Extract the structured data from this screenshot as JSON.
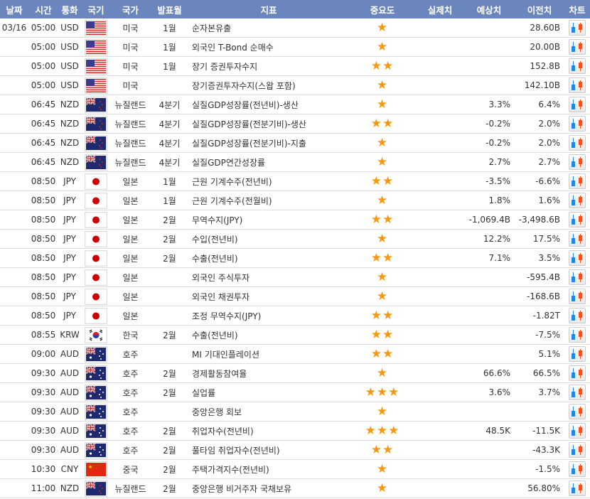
{
  "headers": [
    "날짜",
    "시간",
    "통화",
    "국기",
    "국가",
    "발표월",
    "지표",
    "중요도",
    "실제치",
    "예상치",
    "이전치",
    "차트"
  ],
  "colors": {
    "header_bg": "#6b86bd",
    "star": "#f39a12",
    "chart_blue": "#1e88e5",
    "chart_red": "#f4511e"
  },
  "rows": [
    {
      "date": "03/16",
      "time": "05:00",
      "cur": "USD",
      "flag": "us-flag",
      "country": "미국",
      "period": "1월",
      "event": "순자본유출",
      "stars": 1,
      "actual": "",
      "forecast": "",
      "previous": "28.60B"
    },
    {
      "date": "",
      "time": "05:00",
      "cur": "USD",
      "flag": "us-flag",
      "country": "미국",
      "period": "1월",
      "event": "외국인 T-Bond 순매수",
      "stars": 1,
      "actual": "",
      "forecast": "",
      "previous": "20.00B"
    },
    {
      "date": "",
      "time": "05:00",
      "cur": "USD",
      "flag": "us-flag",
      "country": "미국",
      "period": "1월",
      "event": "장기 증권투자수지",
      "stars": 2,
      "actual": "",
      "forecast": "",
      "previous": "152.8B"
    },
    {
      "date": "",
      "time": "05:00",
      "cur": "USD",
      "flag": "us-flag",
      "country": "미국",
      "period": "",
      "event": "장기증권투자수지(스왑 포함)",
      "stars": 1,
      "actual": "",
      "forecast": "",
      "previous": "142.10B"
    },
    {
      "date": "",
      "time": "06:45",
      "cur": "NZD",
      "flag": "nz-flag",
      "country": "뉴질랜드",
      "period": "4분기",
      "event": "실질GDP성장률(전년비)-생산",
      "stars": 1,
      "actual": "",
      "forecast": "3.3%",
      "previous": "6.4%"
    },
    {
      "date": "",
      "time": "06:45",
      "cur": "NZD",
      "flag": "nz-flag",
      "country": "뉴질랜드",
      "period": "4분기",
      "event": "실질GDP성장률(전분기비)-생산",
      "stars": 2,
      "actual": "",
      "forecast": "-0.2%",
      "previous": "2.0%"
    },
    {
      "date": "",
      "time": "06:45",
      "cur": "NZD",
      "flag": "nz-flag",
      "country": "뉴질랜드",
      "period": "4분기",
      "event": "실질GDP성장률(전분기비)-지출",
      "stars": 1,
      "actual": "",
      "forecast": "-0.2%",
      "previous": "2.0%"
    },
    {
      "date": "",
      "time": "06:45",
      "cur": "NZD",
      "flag": "nz-flag",
      "country": "뉴질랜드",
      "period": "4분기",
      "event": "실질GDP연간성장률",
      "stars": 1,
      "actual": "",
      "forecast": "2.7%",
      "previous": "2.7%"
    },
    {
      "date": "",
      "time": "08:50",
      "cur": "JPY",
      "flag": "jp-flag",
      "country": "일본",
      "period": "1월",
      "event": "근원 기계수주(전년비)",
      "stars": 2,
      "actual": "",
      "forecast": "-3.5%",
      "previous": "-6.6%"
    },
    {
      "date": "",
      "time": "08:50",
      "cur": "JPY",
      "flag": "jp-flag",
      "country": "일본",
      "period": "1월",
      "event": "근원 기계수주(전월비)",
      "stars": 1,
      "actual": "",
      "forecast": "1.8%",
      "previous": "1.6%"
    },
    {
      "date": "",
      "time": "08:50",
      "cur": "JPY",
      "flag": "jp-flag",
      "country": "일본",
      "period": "2월",
      "event": "무역수지(JPY)",
      "stars": 2,
      "actual": "",
      "forecast": "-1,069.4B",
      "previous": "-3,498.6B"
    },
    {
      "date": "",
      "time": "08:50",
      "cur": "JPY",
      "flag": "jp-flag",
      "country": "일본",
      "period": "2월",
      "event": "수입(전년비)",
      "stars": 1,
      "actual": "",
      "forecast": "12.2%",
      "previous": "17.5%"
    },
    {
      "date": "",
      "time": "08:50",
      "cur": "JPY",
      "flag": "jp-flag",
      "country": "일본",
      "period": "2월",
      "event": "수출(전년비)",
      "stars": 2,
      "actual": "",
      "forecast": "7.1%",
      "previous": "3.5%"
    },
    {
      "date": "",
      "time": "08:50",
      "cur": "JPY",
      "flag": "jp-flag",
      "country": "일본",
      "period": "",
      "event": "외국인 주식투자",
      "stars": 1,
      "actual": "",
      "forecast": "",
      "previous": "-595.4B"
    },
    {
      "date": "",
      "time": "08:50",
      "cur": "JPY",
      "flag": "jp-flag",
      "country": "일본",
      "period": "",
      "event": "외국인 채권투자",
      "stars": 1,
      "actual": "",
      "forecast": "",
      "previous": "-168.6B"
    },
    {
      "date": "",
      "time": "08:50",
      "cur": "JPY",
      "flag": "jp-flag",
      "country": "일본",
      "period": "",
      "event": "조정 무역수지(JPY)",
      "stars": 2,
      "actual": "",
      "forecast": "",
      "previous": "-1.82T"
    },
    {
      "date": "",
      "time": "08:55",
      "cur": "KRW",
      "flag": "kr-flag",
      "country": "한국",
      "period": "2월",
      "event": "수출(전년비)",
      "stars": 2,
      "actual": "",
      "forecast": "",
      "previous": "-7.5%"
    },
    {
      "date": "",
      "time": "09:00",
      "cur": "AUD",
      "flag": "au-flag",
      "country": "호주",
      "period": "",
      "event": "MI 기대인플레이션",
      "stars": 2,
      "actual": "",
      "forecast": "",
      "previous": "5.1%"
    },
    {
      "date": "",
      "time": "09:30",
      "cur": "AUD",
      "flag": "au-flag",
      "country": "호주",
      "period": "2월",
      "event": "경제활동참여율",
      "stars": 1,
      "actual": "",
      "forecast": "66.6%",
      "previous": "66.5%"
    },
    {
      "date": "",
      "time": "09:30",
      "cur": "AUD",
      "flag": "au-flag",
      "country": "호주",
      "period": "2월",
      "event": "실업률",
      "stars": 3,
      "actual": "",
      "forecast": "3.6%",
      "previous": "3.7%"
    },
    {
      "date": "",
      "time": "09:30",
      "cur": "AUD",
      "flag": "au-flag",
      "country": "호주",
      "period": "",
      "event": "중앙은행 회보",
      "stars": 1,
      "actual": "",
      "forecast": "",
      "previous": ""
    },
    {
      "date": "",
      "time": "09:30",
      "cur": "AUD",
      "flag": "au-flag",
      "country": "호주",
      "period": "2월",
      "event": "취업자수(전년비)",
      "stars": 3,
      "actual": "",
      "forecast": "48.5K",
      "previous": "-11.5K"
    },
    {
      "date": "",
      "time": "09:30",
      "cur": "AUD",
      "flag": "au-flag",
      "country": "호주",
      "period": "2월",
      "event": "풀타임 취업자수(전년비)",
      "stars": 2,
      "actual": "",
      "forecast": "",
      "previous": "-43.3K"
    },
    {
      "date": "",
      "time": "10:30",
      "cur": "CNY",
      "flag": "cn-flag",
      "country": "중국",
      "period": "2월",
      "event": "주택가격지수(전년비)",
      "stars": 1,
      "actual": "",
      "forecast": "",
      "previous": "-1.5%"
    },
    {
      "date": "",
      "time": "11:00",
      "cur": "NZD",
      "flag": "nz-flag",
      "country": "뉴질랜드",
      "period": "2월",
      "event": "중앙은행 비거주자 국채보유",
      "stars": 1,
      "actual": "",
      "forecast": "",
      "previous": "56.80%"
    }
  ]
}
